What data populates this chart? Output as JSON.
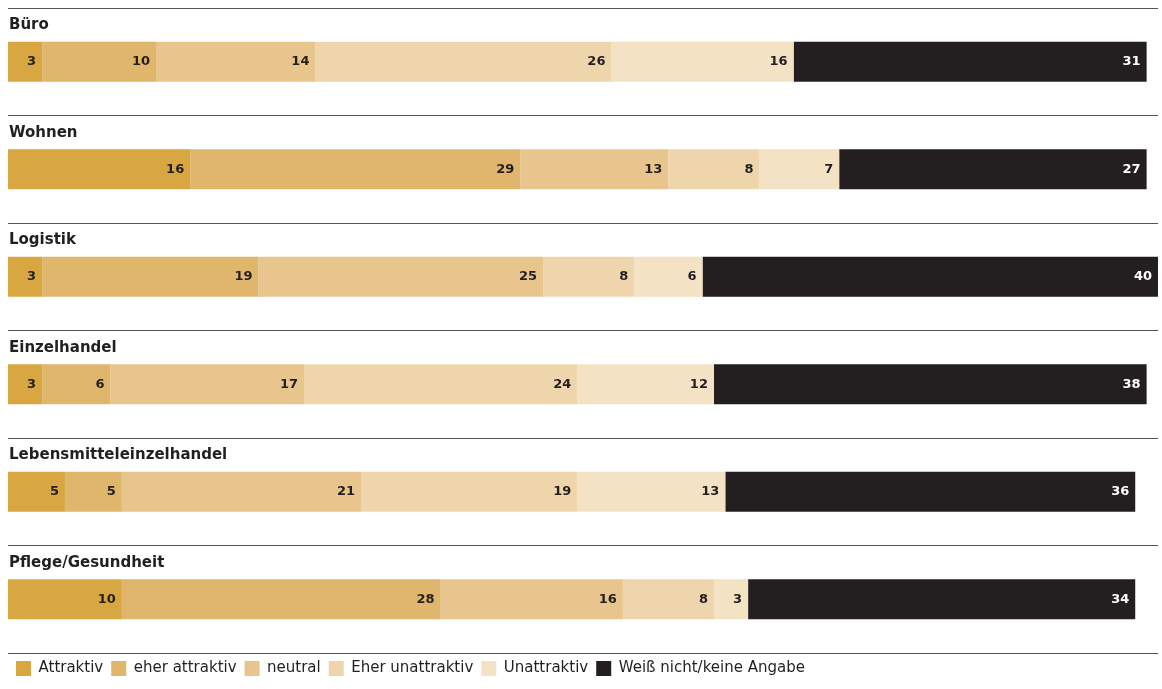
{
  "chart_data": {
    "type": "bar",
    "orientation": "horizontal",
    "stacked": true,
    "data_labels": true,
    "grid": "y",
    "legend": "bottom left",
    "categories": [
      "Büro",
      "Wohnen",
      "Logistik",
      "Einzelhandel",
      "Lebensmitteleinzelhandel",
      "Pflege/Gesundheit"
    ],
    "series": [
      {
        "name": "Attraktiv",
        "color": "#d9a742",
        "values": [
          3,
          16,
          3,
          3,
          5,
          10
        ]
      },
      {
        "name": "eher attraktiv",
        "color": "#e0b56c",
        "values": [
          10,
          29,
          19,
          6,
          5,
          28
        ]
      },
      {
        "name": "neutral",
        "color": "#e8c58c",
        "values": [
          14,
          13,
          25,
          17,
          21,
          16
        ]
      },
      {
        "name": "Eher unattraktiv",
        "color": "#efd5ac",
        "values": [
          26,
          8,
          8,
          24,
          19,
          8
        ]
      },
      {
        "name": "Unattraktiv",
        "color": "#f3e2c4",
        "values": [
          16,
          7,
          6,
          12,
          13,
          3
        ]
      },
      {
        "name": "Weiß nicht/keine Angabe",
        "color": "#231f20",
        "values": [
          31,
          27,
          40,
          38,
          36,
          34
        ]
      }
    ]
  }
}
